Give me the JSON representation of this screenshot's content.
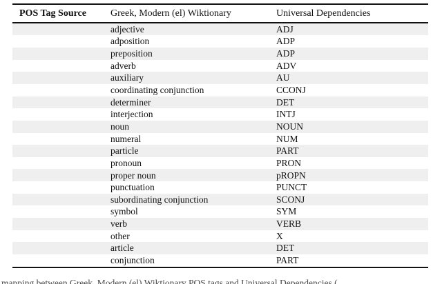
{
  "table": {
    "headers": {
      "col1": "POS Tag Source",
      "col2": "Greek, Modern (el) Wiktionary",
      "col3": "Universal Dependencies"
    },
    "rows": [
      {
        "wiktionary": "adjective",
        "ud": "ADJ"
      },
      {
        "wiktionary": "adposition",
        "ud": "ADP"
      },
      {
        "wiktionary": "preposition",
        "ud": "ADP"
      },
      {
        "wiktionary": "adverb",
        "ud": "ADV"
      },
      {
        "wiktionary": "auxiliary",
        "ud": "AU"
      },
      {
        "wiktionary": "coordinating conjunction",
        "ud": "CCONJ"
      },
      {
        "wiktionary": "determiner",
        "ud": "DET"
      },
      {
        "wiktionary": "interjection",
        "ud": "INTJ"
      },
      {
        "wiktionary": "noun",
        "ud": "NOUN"
      },
      {
        "wiktionary": "numeral",
        "ud": "NUM"
      },
      {
        "wiktionary": "particle",
        "ud": "PART"
      },
      {
        "wiktionary": "pronoun",
        "ud": "PRON"
      },
      {
        "wiktionary": "proper noun",
        "ud": "pROPN"
      },
      {
        "wiktionary": "punctuation",
        "ud": "PUNCT"
      },
      {
        "wiktionary": "subordinating conjunction",
        "ud": "SCONJ"
      },
      {
        "wiktionary": "symbol",
        "ud": "SYM"
      },
      {
        "wiktionary": "verb",
        "ud": "VERB"
      },
      {
        "wiktionary": "other",
        "ud": "X"
      },
      {
        "wiktionary": "article",
        "ud": "DET"
      },
      {
        "wiktionary": "conjunction",
        "ud": "PART"
      }
    ]
  },
  "caption_fragment": "mapping between Greek, Modern (el) Wiktionary POS tags and Universal Dependencies (",
  "colors": {
    "zebra_stripe": "#efefef",
    "rule": "#111111",
    "background": "#ffffff"
  }
}
